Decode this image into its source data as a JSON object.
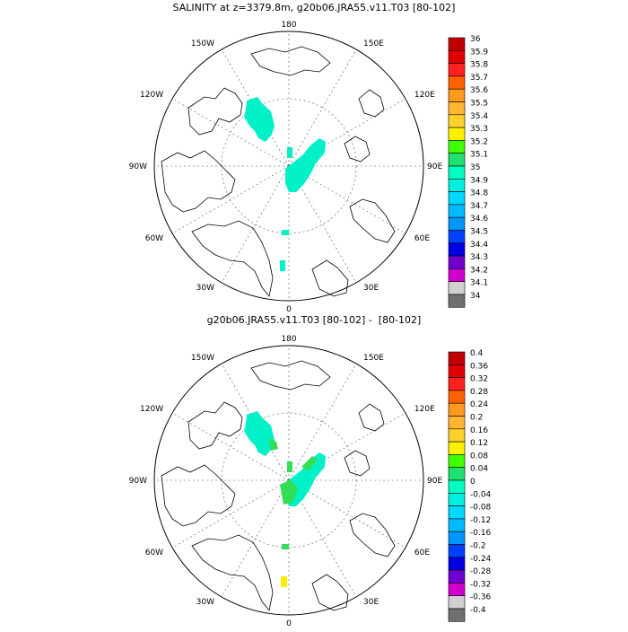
{
  "panels": [
    {
      "title": "SALINITY at z=3379.8m, g20b06.JRA55.v11.T03 [80-102]",
      "colorbar": {
        "labels": [
          "36",
          "35.9",
          "35.8",
          "35.7",
          "35.6",
          "35.5",
          "35.4",
          "35.3",
          "35.2",
          "35.1",
          "35",
          "34.9",
          "34.8",
          "34.7",
          "34.6",
          "34.5",
          "34.4",
          "34.3",
          "34.2",
          "34.1",
          "34"
        ],
        "colors": [
          "#c00000",
          "#e00000",
          "#ff2020",
          "#ff6000",
          "#ff9a1e",
          "#ffb432",
          "#ffd02a",
          "#fff000",
          "#40ff00",
          "#20e070",
          "#00ffc0",
          "#00f0e0",
          "#00d8ff",
          "#00bcff",
          "#0096ff",
          "#0040ff",
          "#0000e0",
          "#7000d0",
          "#d000d0",
          "#d0d0d0",
          "#707070"
        ]
      }
    },
    {
      "title": "g20b06.JRA55.v11.T03 [80-102] -  [80-102]",
      "colorbar": {
        "labels": [
          "0.4",
          "0.36",
          "0.32",
          "0.28",
          "0.24",
          "0.2",
          "0.16",
          "0.12",
          "0.08",
          "0.04",
          "0",
          "-0.04",
          "-0.08",
          "-0.12",
          "-0.16",
          "-0.2",
          "-0.24",
          "-0.28",
          "-0.32",
          "-0.36",
          "-0.4"
        ],
        "colors": [
          "#c00000",
          "#e00000",
          "#ff2020",
          "#ff6000",
          "#ff9a1e",
          "#ffb432",
          "#ffd02a",
          "#fff000",
          "#40ff00",
          "#20e070",
          "#00ffc0",
          "#00f0e0",
          "#00d8ff",
          "#00bcff",
          "#0096ff",
          "#0040ff",
          "#0000e0",
          "#7000d0",
          "#d000d0",
          "#d0d0d0",
          "#707070"
        ]
      }
    }
  ],
  "map_labels": {
    "top": "180",
    "bottom": "0",
    "left": "90W",
    "right": "90E",
    "upper_left_1": "150W",
    "upper_left_2": "120W",
    "upper_right_1": "150E",
    "upper_right_2": "120E",
    "lower_left_1": "60W",
    "lower_left_2": "30W",
    "lower_right_1": "60E",
    "lower_right_2": "30E"
  },
  "colors": {
    "main_field": "#00f0c8",
    "diff_positive": "#33dd55",
    "diff_yellow": "#ffee00"
  }
}
